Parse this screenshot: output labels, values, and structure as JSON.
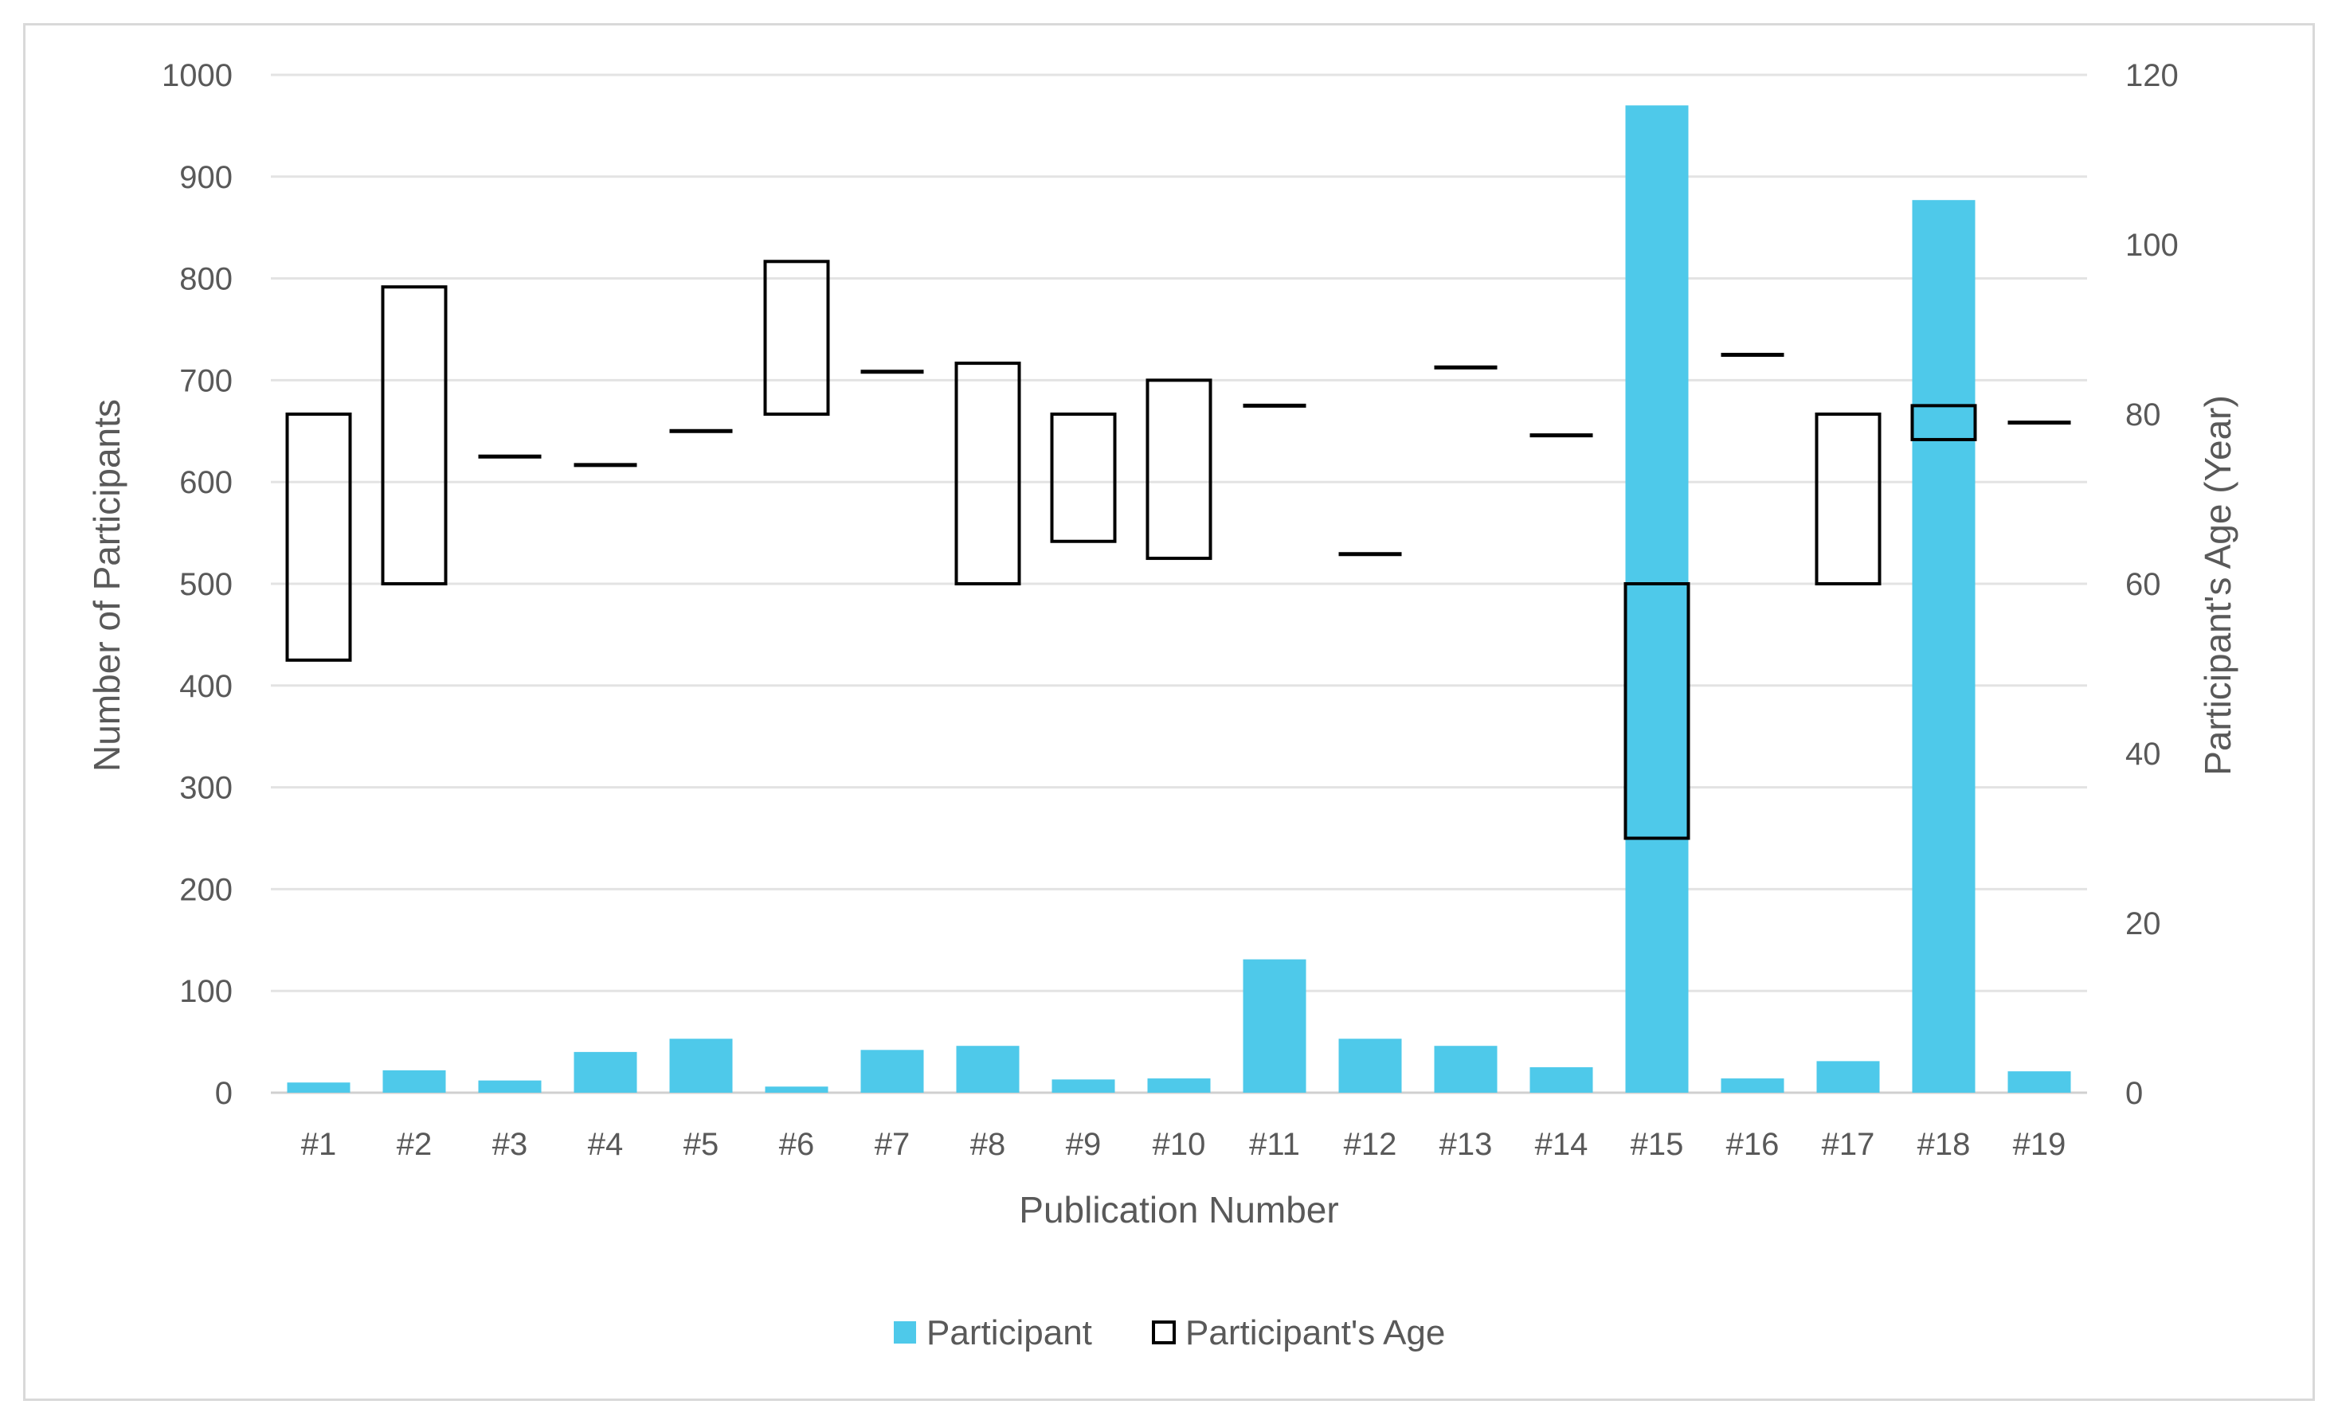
{
  "chart_data": {
    "type": "bar",
    "categories": [
      "#1",
      "#2",
      "#3",
      "#4",
      "#5",
      "#6",
      "#7",
      "#8",
      "#9",
      "#10",
      "#11",
      "#12",
      "#13",
      "#14",
      "#15",
      "#16",
      "#17",
      "#18",
      "#19"
    ],
    "xlabel": "Publication Number",
    "ylabel": "Number of Participants",
    "y2label": "Participant's Age (Year)",
    "ylim": [
      0,
      1000
    ],
    "y2lim": [
      0,
      120
    ],
    "yticks": [
      "0",
      "100",
      "200",
      "300",
      "400",
      "500",
      "600",
      "700",
      "800",
      "900",
      "1000"
    ],
    "y2ticks": [
      "0",
      "20",
      "40",
      "60",
      "80",
      "100",
      "120"
    ],
    "grid": true,
    "legend_position": "bottom",
    "series": [
      {
        "name": "Participant",
        "type": "bar",
        "axis": "left",
        "color": "#4ec9ea",
        "values": [
          10,
          22,
          12,
          40,
          53,
          6,
          42,
          46,
          13,
          14,
          131,
          53,
          46,
          25,
          970,
          14,
          31,
          877,
          21
        ]
      },
      {
        "name": "Participant's Age",
        "type": "floating-range",
        "axis": "right",
        "color": "#000000",
        "ranges": [
          [
            51,
            80
          ],
          [
            60,
            95
          ],
          [
            75,
            75
          ],
          [
            74,
            74
          ],
          [
            78,
            78
          ],
          [
            80,
            98
          ],
          [
            85,
            85
          ],
          [
            60,
            86
          ],
          [
            65,
            80
          ],
          [
            63,
            84
          ],
          [
            81,
            81
          ],
          [
            63.5,
            63.5
          ],
          [
            85.5,
            85.5
          ],
          [
            77.5,
            77.5
          ],
          [
            30,
            60
          ],
          [
            87,
            87
          ],
          [
            60,
            80
          ],
          [
            77,
            81
          ],
          [
            79,
            79
          ]
        ]
      }
    ]
  }
}
